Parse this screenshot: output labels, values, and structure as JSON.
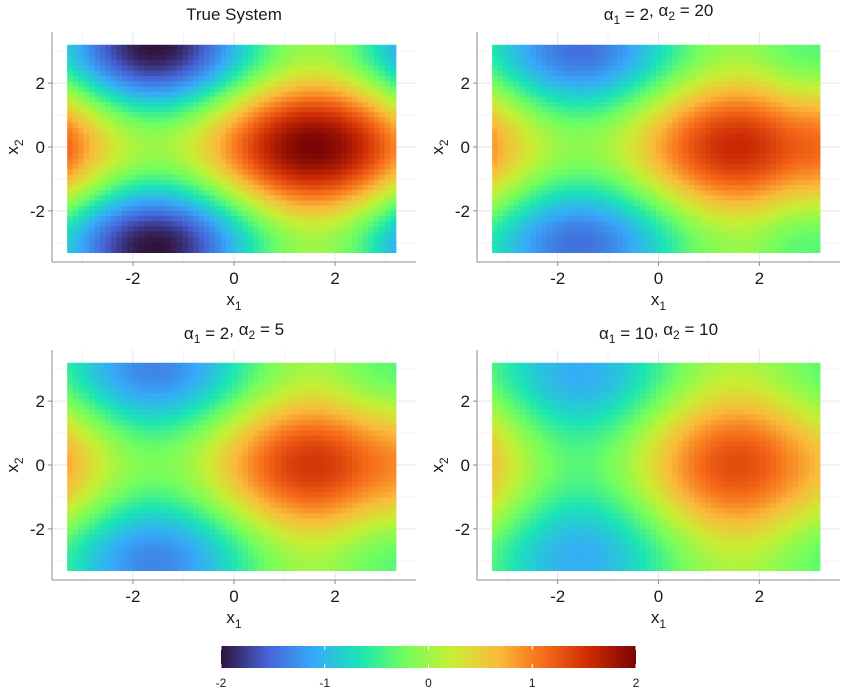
{
  "chart_data": {
    "type": "heatmap",
    "function_domain": {
      "x1": [
        -3.3,
        3.2
      ],
      "x2": [
        -3.3,
        3.2
      ]
    },
    "axis_range": {
      "x1": [
        -3.6,
        3.6
      ],
      "x2": [
        -3.6,
        3.6
      ]
    },
    "x_ticks": [
      -2,
      0,
      2
    ],
    "y_ticks": [
      -2,
      0,
      2
    ],
    "tick_labels": {
      "x": [
        "-2",
        "0",
        "2"
      ],
      "y": [
        "-2",
        "0",
        "2"
      ]
    },
    "xlabel": {
      "base": "x",
      "sub": "1"
    },
    "ylabel": {
      "base": "x",
      "sub": "2"
    },
    "grid": true,
    "legend_placement": "bottom",
    "colorbar": {
      "range": [
        -2,
        2
      ],
      "ticks": [
        -2,
        -1,
        0,
        1,
        2
      ],
      "tick_labels": [
        "-2",
        "-1",
        "0",
        "1",
        "2"
      ],
      "palette": [
        "#30123b",
        "#4662d7",
        "#36aaf9",
        "#1ae4b6",
        "#72fe5e",
        "#c7ef34",
        "#fabb3a",
        "#f66b19",
        "#cb2a04",
        "#7a0403"
      ]
    },
    "panels": [
      {
        "id": "true-system",
        "title": {
          "prefix": "True System",
          "parts": []
        },
        "model": {
          "amp_sin": 1.0,
          "amp_cos": 1.0,
          "smooth": 0.0,
          "edge": 0.0
        }
      },
      {
        "id": "a2-20",
        "title": {
          "prefix": "",
          "parts": [
            {
              "sym": "α",
              "sub": "1",
              "value": "2"
            },
            {
              "sym": "α",
              "sub": "2",
              "value": "20"
            }
          ]
        },
        "model": {
          "amp_sin": 0.8,
          "amp_cos": 0.85,
          "smooth": 0.3,
          "edge": 0.45
        }
      },
      {
        "id": "a2-5",
        "title": {
          "prefix": "",
          "parts": [
            {
              "sym": "α",
              "sub": "1",
              "value": "2"
            },
            {
              "sym": "α",
              "sub": "2",
              "value": "5"
            }
          ]
        },
        "model": {
          "amp_sin": 0.78,
          "amp_cos": 0.75,
          "smooth": 0.4,
          "edge": 0.35
        }
      },
      {
        "id": "a10-10",
        "title": {
          "prefix": "",
          "parts": [
            {
              "sym": "α",
              "sub": "1",
              "value": "10"
            },
            {
              "sym": "α",
              "sub": "2",
              "value": "10"
            }
          ]
        },
        "model": {
          "amp_sin": 0.7,
          "amp_cos": 0.45,
          "smooth": 0.7,
          "edge": 0.2
        }
      }
    ]
  }
}
